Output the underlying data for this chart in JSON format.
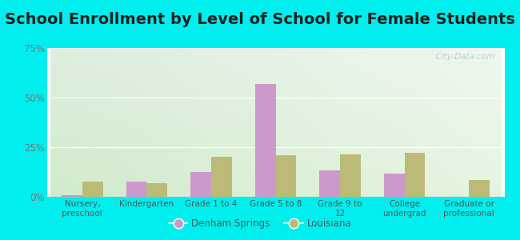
{
  "title": "School Enrollment by Level of School for Female Students",
  "categories": [
    "Nursery,\npreschool",
    "Kindergarten",
    "Grade 1 to 4",
    "Grade 5 to 8",
    "Grade 9 to\n12",
    "College\nundergrad",
    "Graduate or\nprofessional"
  ],
  "denham_springs": [
    0.8,
    7.5,
    12.5,
    57.0,
    13.5,
    11.5,
    0.0
  ],
  "louisiana": [
    7.5,
    7.0,
    20.0,
    21.0,
    21.5,
    22.0,
    8.5
  ],
  "denham_color": "#cc99cc",
  "louisiana_color": "#bbbb77",
  "ylim": [
    0,
    75
  ],
  "yticks": [
    0,
    25,
    50,
    75
  ],
  "ytick_labels": [
    "0%",
    "25%",
    "50%",
    "75%"
  ],
  "background_color": "#00eeee",
  "plot_bg_topleft": "#ddeedd",
  "plot_bg_topright": "#eef8ee",
  "plot_bg_bottom": "#f0f8e8",
  "title_fontsize": 14,
  "legend_labels": [
    "Denham Springs",
    "Louisiana"
  ],
  "watermark": "  City-Data.com"
}
